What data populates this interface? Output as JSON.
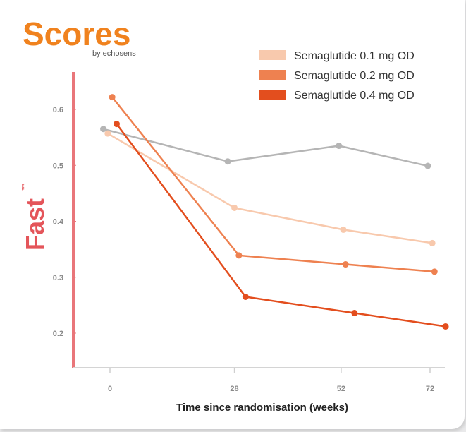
{
  "brand": {
    "name": "Scores",
    "byline": "by echosens",
    "color": "#f0821e"
  },
  "chart_data": {
    "type": "line",
    "title": "",
    "ylabel": "Fast",
    "ylabel_mark": "™",
    "xlabel": "Time since randomisation (weeks)",
    "x_ticks": [
      0,
      28,
      52,
      72
    ],
    "y_ticks": [
      0.2,
      0.3,
      0.4,
      0.5,
      0.6
    ],
    "ylim": [
      0.15,
      0.68
    ],
    "xlim": [
      -8,
      80
    ],
    "grid": false,
    "legend_position": "top-right",
    "series": [
      {
        "name": "",
        "color": "#b5b5b5",
        "points": [
          [
            -1.5,
            0.565
          ],
          [
            26.5,
            0.507
          ],
          [
            51.5,
            0.535
          ],
          [
            71.5,
            0.499
          ]
        ]
      },
      {
        "name": "Semaglutide 0.1 mg OD",
        "color": "#f8c9ad",
        "points": [
          [
            -0.5,
            0.557
          ],
          [
            28,
            0.424
          ],
          [
            52.5,
            0.385
          ],
          [
            72.5,
            0.361
          ]
        ]
      },
      {
        "name": "Semaglutide 0.2 mg OD",
        "color": "#ee8150",
        "points": [
          [
            0.5,
            0.622
          ],
          [
            29,
            0.339
          ],
          [
            53,
            0.323
          ],
          [
            73,
            0.31
          ]
        ]
      },
      {
        "name": "Semaglutide 0.4 mg OD",
        "color": "#e34e1e",
        "points": [
          [
            1.5,
            0.574
          ],
          [
            30.5,
            0.265
          ],
          [
            55,
            0.236
          ],
          [
            75.5,
            0.212
          ]
        ]
      }
    ]
  }
}
